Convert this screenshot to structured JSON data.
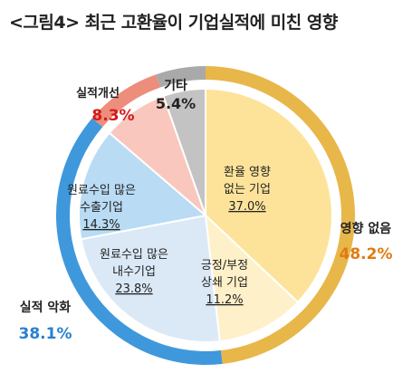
{
  "title": "<그림4> 최근 고환율이 기업실적에 미친 영향",
  "chart_data": {
    "type": "pie",
    "title": "<그림4> 최근 고환율이 기업실적에 미친 영향",
    "inner": [
      {
        "lines": [
          "환율 영향",
          "없는 기업"
        ],
        "value_label": "37.0%",
        "value": 37.0,
        "color": "#fde39a"
      },
      {
        "lines": [
          "긍정/부정",
          "상쇄 기업"
        ],
        "value_label": "11.2%",
        "value": 11.2,
        "color": "#fef0c8"
      },
      {
        "lines": [
          "원료수입 많은",
          "내수기업"
        ],
        "value_label": "23.8%",
        "value": 23.8,
        "color": "#dbe9f7"
      },
      {
        "lines": [
          "원료수입 많은",
          "수출기업"
        ],
        "value_label": "14.3%",
        "value": 14.3,
        "color": "#b9dbf3"
      },
      {
        "lines": [
          "실적개선"
        ],
        "value_label": "8.3%",
        "value": 8.3,
        "color": "#f9c7bd"
      },
      {
        "lines": [
          "기타"
        ],
        "value_label": "5.4%",
        "value": 5.4,
        "color": "#c3c3c3"
      }
    ],
    "outer": [
      {
        "name": "영향 없음",
        "value_label": "48.2%",
        "value": 48.2,
        "color": "#e8b74a",
        "value_color": "#e07b10"
      },
      {
        "name": "실적 악화",
        "value_label": "38.1%",
        "value": 38.1,
        "color": "#3f98dc",
        "value_color": "#2980d0"
      },
      {
        "name": "실적개선",
        "value_label": "8.3%",
        "value": 8.3,
        "color": "#ed8d7c",
        "value_color": "#d41a1a"
      },
      {
        "name": "기타",
        "value_label": "5.4%",
        "value": 5.4,
        "color": "#a9a9a9",
        "value_color": "#222222"
      }
    ]
  }
}
